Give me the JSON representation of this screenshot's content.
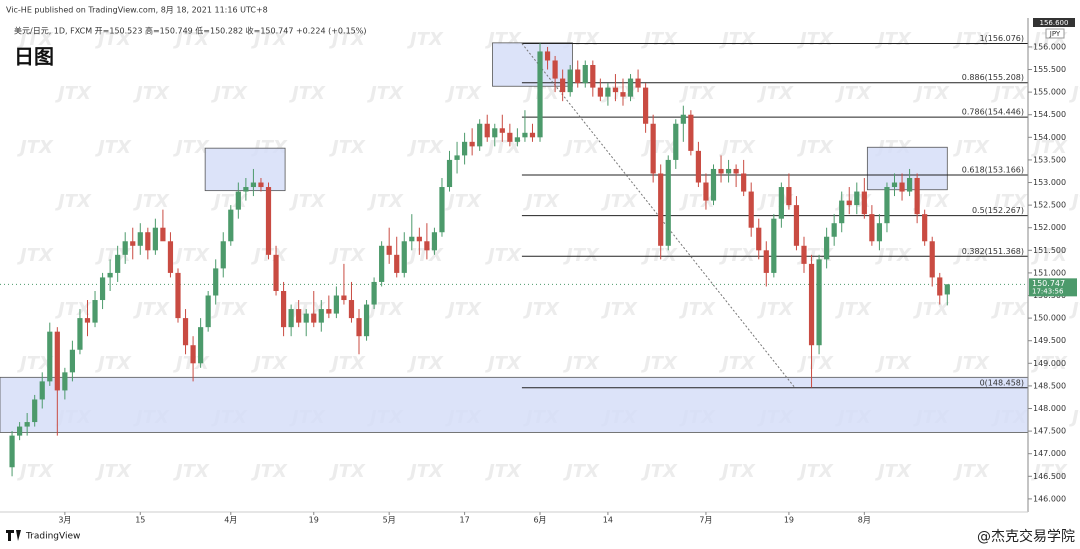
{
  "header": {
    "publisher": "Vic-HE published on TradingView.com, 8月 18, 2021 11:16 UTC+8",
    "symbol": "美元/日元, 1D, FXCM  开=150.523  高=150.749  低=150.282  收=150.747  +0.224 (+0.15%)",
    "timeframe_label": "日图",
    "currency": "JPY",
    "top_price": "156.600"
  },
  "footer": {
    "brand": "TradingView",
    "watermark": "@杰克交易学院",
    "tile": "JTX"
  },
  "chart_data": {
    "type": "candlestick",
    "up_color": "#4c9a6b",
    "down_color": "#c94b42",
    "grid": false,
    "ylim": [
      145.71,
      156.64
    ],
    "xlim": [
      -1.6,
      134.7
    ],
    "yticks": [
      {
        "value": 146,
        "label": "146.000"
      },
      {
        "value": 146.5,
        "label": "146.500"
      },
      {
        "value": 147,
        "label": "147.000"
      },
      {
        "value": 147.5,
        "label": "147.500"
      },
      {
        "value": 148,
        "label": "148.000"
      },
      {
        "value": 148.5,
        "label": "148.500"
      },
      {
        "value": 149,
        "label": "149.000"
      },
      {
        "value": 149.5,
        "label": "149.500"
      },
      {
        "value": 150,
        "label": "150.000"
      },
      {
        "value": 150.5,
        "label": "150.500"
      },
      {
        "value": 151,
        "label": "151.000"
      },
      {
        "value": 151.5,
        "label": "151.500"
      },
      {
        "value": 152,
        "label": "152.000"
      },
      {
        "value": 152.5,
        "label": "152.500"
      },
      {
        "value": 153,
        "label": "153.000"
      },
      {
        "value": 153.5,
        "label": "153.500"
      },
      {
        "value": 154,
        "label": "154.000"
      },
      {
        "value": 154.5,
        "label": "154.500"
      },
      {
        "value": 155,
        "label": "155.000"
      },
      {
        "value": 155.5,
        "label": "155.500"
      },
      {
        "value": 156,
        "label": "156.000"
      }
    ],
    "xticks": [
      {
        "value": 7,
        "label": "3月"
      },
      {
        "value": 17,
        "label": "15"
      },
      {
        "value": 29,
        "label": "4月"
      },
      {
        "value": 40,
        "label": "19"
      },
      {
        "value": 50,
        "label": "5月"
      },
      {
        "value": 60,
        "label": "17"
      },
      {
        "value": 70,
        "label": "6月"
      },
      {
        "value": 79,
        "label": "14"
      },
      {
        "value": 92,
        "label": "7月"
      },
      {
        "value": 103,
        "label": "19"
      },
      {
        "value": 113,
        "label": "8月"
      }
    ],
    "candles": [
      [
        146.7,
        147.5,
        146.5,
        147.4
      ],
      [
        147.4,
        147.7,
        147.3,
        147.6
      ],
      [
        147.6,
        147.9,
        147.4,
        147.7
      ],
      [
        147.7,
        148.3,
        147.6,
        148.2
      ],
      [
        148.2,
        148.8,
        148.0,
        148.6
      ],
      [
        148.6,
        149.9,
        148.5,
        149.7
      ],
      [
        149.7,
        149.8,
        147.4,
        148.4
      ],
      [
        148.4,
        148.9,
        148.2,
        148.8
      ],
      [
        148.8,
        149.5,
        148.6,
        149.3
      ],
      [
        149.3,
        150.2,
        149.2,
        150.0
      ],
      [
        150.0,
        150.4,
        149.6,
        149.9
      ],
      [
        149.9,
        150.6,
        149.8,
        150.4
      ],
      [
        150.4,
        151.0,
        150.2,
        150.9
      ],
      [
        150.9,
        151.3,
        150.6,
        151.0
      ],
      [
        151.0,
        151.6,
        150.8,
        151.4
      ],
      [
        151.4,
        151.9,
        151.2,
        151.7
      ],
      [
        151.7,
        152.0,
        151.3,
        151.6
      ],
      [
        151.6,
        152.1,
        151.4,
        151.9
      ],
      [
        151.9,
        152.0,
        151.3,
        151.5
      ],
      [
        151.5,
        152.2,
        151.4,
        152.0
      ],
      [
        152.0,
        152.4,
        151.8,
        151.7
      ],
      [
        151.7,
        151.9,
        150.9,
        151.0
      ],
      [
        151.0,
        151.1,
        149.9,
        150.0
      ],
      [
        150.0,
        150.2,
        149.2,
        149.4
      ],
      [
        149.4,
        149.6,
        148.6,
        149.0
      ],
      [
        149.0,
        150.0,
        148.9,
        149.8
      ],
      [
        149.8,
        150.6,
        149.7,
        150.5
      ],
      [
        150.5,
        151.3,
        150.3,
        151.1
      ],
      [
        151.1,
        151.9,
        150.9,
        151.7
      ],
      [
        151.7,
        152.5,
        151.6,
        152.4
      ],
      [
        152.4,
        153.0,
        152.2,
        152.8
      ],
      [
        152.8,
        153.1,
        152.6,
        152.9
      ],
      [
        152.9,
        153.3,
        152.7,
        153.0
      ],
      [
        153.0,
        153.1,
        152.8,
        152.9
      ],
      [
        152.9,
        153.0,
        151.3,
        151.4
      ],
      [
        151.4,
        151.6,
        150.5,
        150.6
      ],
      [
        150.6,
        150.8,
        149.6,
        149.8
      ],
      [
        149.8,
        150.3,
        149.6,
        150.2
      ],
      [
        150.2,
        150.4,
        149.8,
        149.9
      ],
      [
        149.9,
        150.2,
        149.6,
        150.1
      ],
      [
        150.1,
        150.6,
        149.8,
        149.9
      ],
      [
        149.9,
        150.4,
        149.7,
        150.2
      ],
      [
        150.2,
        150.5,
        150.0,
        150.1
      ],
      [
        150.1,
        150.7,
        150.0,
        150.5
      ],
      [
        150.5,
        151.2,
        150.3,
        150.4
      ],
      [
        150.4,
        150.8,
        149.9,
        150.0
      ],
      [
        150.0,
        150.2,
        149.2,
        149.6
      ],
      [
        149.6,
        150.4,
        149.5,
        150.3
      ],
      [
        150.3,
        150.9,
        150.2,
        150.8
      ],
      [
        150.8,
        151.7,
        150.7,
        151.6
      ],
      [
        151.6,
        152.0,
        151.2,
        151.4
      ],
      [
        151.4,
        151.8,
        150.9,
        151.0
      ],
      [
        151.0,
        151.9,
        150.9,
        151.7
      ],
      [
        151.7,
        152.3,
        151.5,
        151.8
      ],
      [
        151.8,
        152.0,
        151.4,
        151.7
      ],
      [
        151.7,
        152.1,
        151.3,
        151.5
      ],
      [
        151.5,
        152.0,
        151.4,
        151.9
      ],
      [
        151.9,
        153.1,
        151.8,
        152.9
      ],
      [
        152.9,
        153.7,
        152.8,
        153.5
      ],
      [
        153.5,
        153.9,
        153.2,
        153.6
      ],
      [
        153.6,
        154.1,
        153.4,
        153.9
      ],
      [
        153.9,
        154.2,
        153.6,
        153.8
      ],
      [
        153.8,
        154.4,
        153.7,
        154.3
      ],
      [
        154.3,
        154.5,
        153.9,
        154.0
      ],
      [
        154.0,
        154.3,
        153.8,
        154.2
      ],
      [
        154.2,
        154.5,
        153.9,
        154.1
      ],
      [
        154.1,
        154.3,
        153.8,
        153.9
      ],
      [
        153.9,
        154.2,
        153.8,
        154.0
      ],
      [
        154.0,
        154.6,
        153.9,
        154.1
      ],
      [
        154.1,
        154.3,
        153.9,
        154.0
      ],
      [
        154.0,
        156.08,
        153.9,
        155.9
      ],
      [
        155.9,
        156.0,
        155.5,
        155.7
      ],
      [
        155.7,
        155.8,
        155.0,
        155.3
      ],
      [
        155.3,
        155.5,
        154.8,
        155.0
      ],
      [
        155.0,
        155.6,
        154.9,
        155.5
      ],
      [
        155.5,
        155.7,
        155.1,
        155.2
      ],
      [
        155.2,
        155.7,
        155.1,
        155.6
      ],
      [
        155.6,
        155.7,
        154.9,
        155.1
      ],
      [
        155.1,
        155.3,
        154.8,
        154.9
      ],
      [
        154.9,
        155.2,
        154.7,
        155.1
      ],
      [
        155.1,
        155.4,
        154.8,
        155.0
      ],
      [
        155.0,
        155.3,
        154.7,
        154.9
      ],
      [
        154.9,
        155.4,
        154.8,
        155.3
      ],
      [
        155.3,
        155.5,
        155.0,
        155.1
      ],
      [
        155.1,
        155.2,
        154.1,
        154.3
      ],
      [
        154.3,
        154.5,
        153.0,
        153.2
      ],
      [
        153.2,
        153.4,
        151.3,
        151.6
      ],
      [
        151.6,
        153.6,
        151.5,
        153.5
      ],
      [
        153.5,
        154.4,
        153.3,
        154.3
      ],
      [
        154.3,
        154.7,
        153.9,
        154.5
      ],
      [
        154.5,
        154.6,
        153.6,
        153.7
      ],
      [
        153.7,
        153.9,
        152.9,
        153.0
      ],
      [
        153.0,
        153.2,
        152.4,
        152.6
      ],
      [
        152.6,
        153.4,
        152.5,
        153.3
      ],
      [
        153.3,
        153.6,
        153.0,
        153.2
      ],
      [
        153.2,
        153.5,
        153.0,
        153.3
      ],
      [
        153.3,
        153.4,
        152.9,
        153.2
      ],
      [
        153.2,
        153.5,
        152.7,
        152.8
      ],
      [
        152.8,
        153.0,
        151.8,
        152.0
      ],
      [
        152.0,
        152.2,
        151.3,
        151.5
      ],
      [
        151.5,
        151.7,
        150.7,
        151.0
      ],
      [
        151.0,
        152.3,
        150.9,
        152.2
      ],
      [
        152.2,
        153.0,
        152.0,
        152.9
      ],
      [
        152.9,
        153.2,
        152.4,
        152.5
      ],
      [
        152.5,
        152.7,
        151.5,
        151.6
      ],
      [
        151.6,
        151.8,
        151.0,
        151.2
      ],
      [
        151.2,
        151.4,
        148.46,
        149.4
      ],
      [
        149.4,
        151.4,
        149.2,
        151.3
      ],
      [
        151.3,
        152.0,
        151.1,
        151.8
      ],
      [
        151.8,
        152.3,
        151.6,
        152.1
      ],
      [
        152.1,
        152.8,
        151.9,
        152.6
      ],
      [
        152.6,
        152.9,
        152.3,
        152.5
      ],
      [
        152.5,
        153.0,
        152.3,
        152.8
      ],
      [
        152.8,
        153.1,
        152.2,
        152.3
      ],
      [
        152.3,
        152.5,
        151.6,
        151.7
      ],
      [
        151.7,
        152.3,
        151.5,
        152.1
      ],
      [
        152.1,
        153.0,
        151.9,
        152.9
      ],
      [
        152.9,
        153.2,
        152.7,
        153.0
      ],
      [
        153.0,
        153.2,
        152.6,
        152.8
      ],
      [
        152.8,
        153.3,
        152.7,
        153.1
      ],
      [
        153.1,
        153.2,
        152.1,
        152.3
      ],
      [
        152.3,
        152.4,
        151.6,
        151.7
      ],
      [
        151.7,
        151.8,
        150.7,
        150.9
      ],
      [
        150.9,
        151.0,
        150.3,
        150.5
      ],
      [
        150.523,
        150.749,
        150.282,
        150.747
      ]
    ],
    "zones": [
      {
        "x": [
          -1.6,
          134.7
        ],
        "y": [
          147.47,
          148.69
        ]
      },
      {
        "x": [
          63.7,
          74.3
        ],
        "y": [
          155.13,
          156.09
        ]
      },
      {
        "x": [
          25.6,
          36.2
        ],
        "y": [
          152.82,
          153.76
        ]
      },
      {
        "x": [
          113.4,
          124.0
        ],
        "y": [
          152.84,
          153.78
        ]
      }
    ],
    "zone_color": "#d6def8",
    "fib": {
      "x_start": 67.6,
      "levels": [
        {
          "value": 156.076,
          "label": "1(156.076)"
        },
        {
          "value": 155.208,
          "label": "0.886(155.208)"
        },
        {
          "value": 154.446,
          "label": "0.786(154.446)"
        },
        {
          "value": 153.166,
          "label": "0.618(153.166)"
        },
        {
          "value": 152.267,
          "label": "0.5(152.267)"
        },
        {
          "value": 151.368,
          "label": "0.382(151.368)"
        },
        {
          "value": 148.458,
          "label": "0(148.458)"
        }
      ]
    },
    "trendline": {
      "x": [
        67.6,
        103.8
      ],
      "y": [
        156.076,
        148.458
      ]
    },
    "last": {
      "value": 150.747,
      "label": "150.747",
      "time": "17:43:56"
    }
  }
}
